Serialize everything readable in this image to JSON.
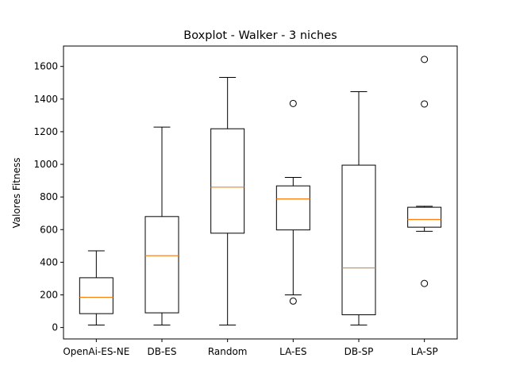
{
  "chart_data": {
    "type": "boxplot",
    "title": "Boxplot - Walker - 3 niches",
    "xlabel": "",
    "ylabel": "Valores Fitness",
    "ylim": [
      -70,
      1725
    ],
    "yticks": [
      0,
      200,
      400,
      600,
      800,
      1000,
      1200,
      1400,
      1600
    ],
    "grid": false,
    "categories": [
      "OpenAi-ES-NE",
      "DB-ES",
      "Random",
      "LA-ES",
      "DB-SP",
      "LA-SP"
    ],
    "boxes": [
      {
        "whisker_low": 15,
        "q1": 85,
        "median": 185,
        "q3": 305,
        "whisker_high": 470,
        "fliers": []
      },
      {
        "whisker_low": 15,
        "q1": 90,
        "median": 440,
        "q3": 680,
        "whisker_high": 1228,
        "fliers": []
      },
      {
        "whisker_low": 15,
        "q1": 578,
        "median": 860,
        "q3": 1218,
        "whisker_high": 1533,
        "fliers": []
      },
      {
        "whisker_low": 200,
        "q1": 598,
        "median": 788,
        "q3": 868,
        "whisker_high": 920,
        "fliers": [
          162,
          1373
        ]
      },
      {
        "whisker_low": 15,
        "q1": 78,
        "median": 365,
        "q3": 995,
        "whisker_high": 1445,
        "fliers": []
      },
      {
        "whisker_low": 590,
        "q1": 615,
        "median": 662,
        "q3": 737,
        "whisker_high": 743,
        "fliers": [
          270,
          1370,
          1643
        ]
      }
    ],
    "colors": {
      "box": "#000000",
      "median": "#ff7f0e",
      "flier": "#000000",
      "background": "#ffffff"
    }
  }
}
